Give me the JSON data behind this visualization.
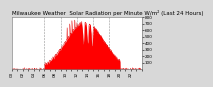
{
  "title": "Milwaukee Weather  Solar Radiation per Minute W/m² (Last 24 Hours)",
  "bg_color": "#d8d8d8",
  "plot_bg_color": "#ffffff",
  "fill_color": "#ff0000",
  "line_color": "#dd0000",
  "grid_color": "#888888",
  "ylim": [
    0,
    800
  ],
  "yticks": [
    100,
    200,
    300,
    400,
    500,
    600,
    700,
    800
  ],
  "num_points": 1440,
  "peak_hour": 13.5,
  "peak_value": 720,
  "rise_hour": 6.0,
  "set_hour": 20.0,
  "title_fontsize": 4.0,
  "tick_fontsize": 3.0
}
